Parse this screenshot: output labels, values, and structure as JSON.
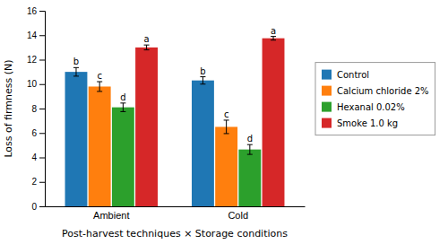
{
  "chart_data": {
    "type": "bar",
    "categories": [
      "Ambient",
      "Cold"
    ],
    "series": [
      {
        "name": "Control",
        "values": [
          11.0,
          10.3
        ],
        "errors": [
          0.35,
          0.3
        ],
        "letters": [
          "b",
          "b"
        ]
      },
      {
        "name": "Calcium chloride 2%",
        "values": [
          9.8,
          6.5
        ],
        "errors": [
          0.4,
          0.55
        ],
        "letters": [
          "c",
          "c"
        ]
      },
      {
        "name": "Hexanal 0.02%",
        "values": [
          8.1,
          4.65
        ],
        "errors": [
          0.35,
          0.4
        ],
        "letters": [
          "d",
          "d"
        ]
      },
      {
        "name": "Smoke 1.0 kg",
        "values": [
          13.0,
          13.75
        ],
        "errors": [
          0.2,
          0.15
        ],
        "letters": [
          "a",
          "a"
        ]
      }
    ],
    "xlabel": "Post-harvest techniques × Storage conditions",
    "ylabel": "Loss of firmness (N)",
    "ylim": [
      0,
      16
    ],
    "yticks": [
      0,
      2,
      4,
      6,
      8,
      10,
      12,
      14,
      16
    ],
    "grid": false,
    "legend": "right"
  }
}
